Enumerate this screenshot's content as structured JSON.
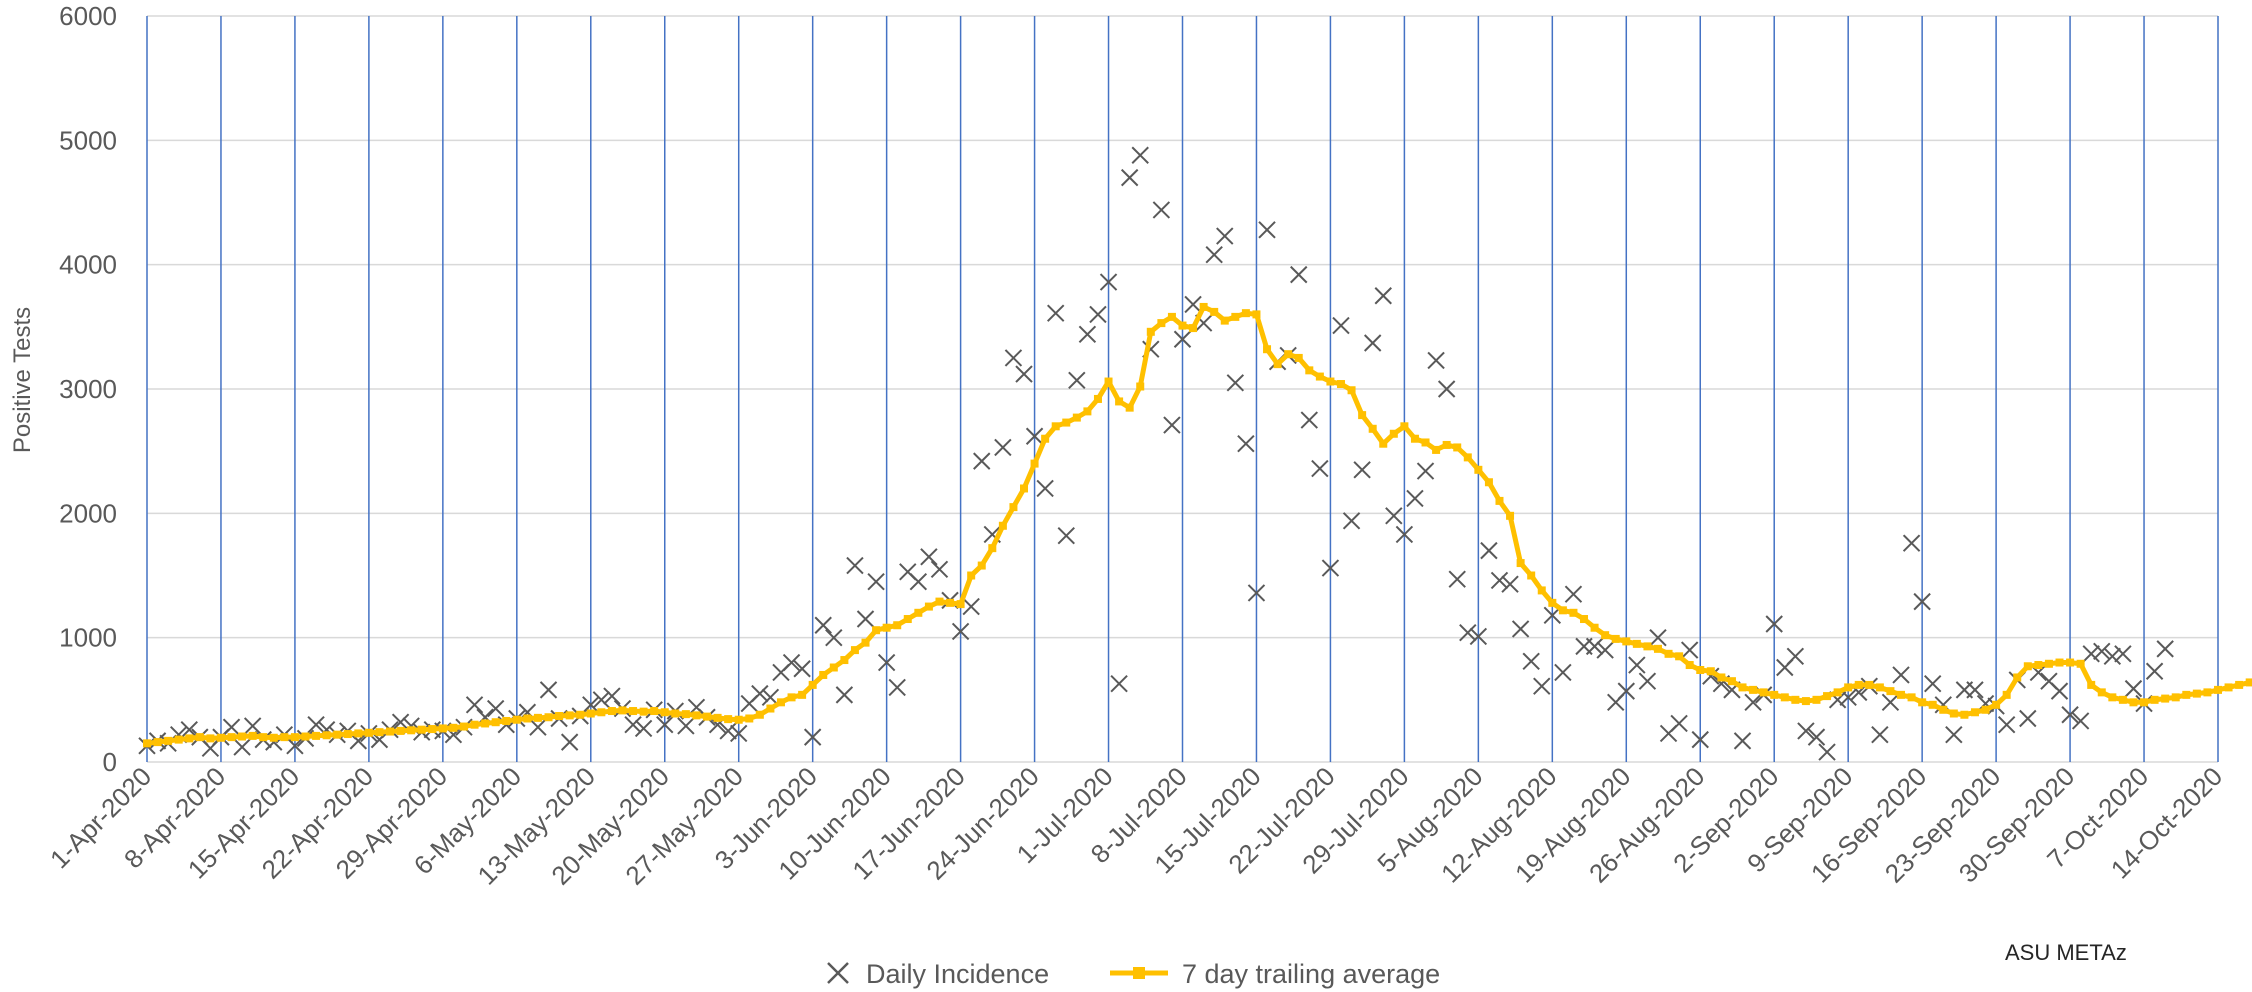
{
  "chart_data": {
    "type": "line",
    "title": "",
    "xlabel": "",
    "ylabel": "Positive Tests",
    "ylim": [
      0,
      6000
    ],
    "y_ticks": [
      0,
      1000,
      2000,
      3000,
      4000,
      5000,
      6000
    ],
    "x_start": "1-Apr-2020",
    "x_end": "14-Oct-2020",
    "x_tick_labels": [
      "1-Apr-2020",
      "8-Apr-2020",
      "15-Apr-2020",
      "22-Apr-2020",
      "29-Apr-2020",
      "6-May-2020",
      "13-May-2020",
      "20-May-2020",
      "27-May-2020",
      "3-Jun-2020",
      "10-Jun-2020",
      "17-Jun-2020",
      "24-Jun-2020",
      "1-Jul-2020",
      "8-Jul-2020",
      "15-Jul-2020",
      "22-Jul-2020",
      "29-Jul-2020",
      "5-Aug-2020",
      "12-Aug-2020",
      "19-Aug-2020",
      "26-Aug-2020",
      "2-Sep-2020",
      "9-Sep-2020",
      "16-Sep-2020",
      "23-Sep-2020",
      "30-Sep-2020",
      "7-Oct-2020",
      "14-Oct-2020"
    ],
    "grid": {
      "horizontal": true,
      "vertical_weekly": true
    },
    "legend_position": "bottom",
    "credit": "ASU METAz",
    "colors": {
      "daily": "#595959",
      "average": "#ffc000",
      "vgrid": "#4472c4",
      "hgrid": "#d9d9d9"
    },
    "series": [
      {
        "name": "Daily Incidence",
        "marker": "x",
        "values": [
          130,
          170,
          150,
          220,
          260,
          200,
          110,
          200,
          280,
          120,
          290,
          180,
          160,
          220,
          130,
          190,
          300,
          260,
          220,
          250,
          170,
          230,
          180,
          260,
          320,
          290,
          240,
          260,
          250,
          220,
          280,
          460,
          360,
          430,
          300,
          350,
          400,
          280,
          580,
          350,
          160,
          370,
          460,
          500,
          530,
          430,
          300,
          270,
          420,
          300,
          410,
          290,
          440,
          360,
          300,
          250,
          230,
          470,
          550,
          520,
          720,
          800,
          750,
          200,
          1100,
          1000,
          540,
          1580,
          1150,
          1450,
          800,
          600,
          1530,
          1450,
          1650,
          1550,
          1300,
          1050,
          1250,
          2420,
          1830,
          2530,
          3250,
          3120,
          2620,
          2200,
          3610,
          1820,
          3070,
          3440,
          3600,
          3860,
          630,
          4700,
          4880,
          3320,
          4440,
          2710,
          3400,
          3680,
          3530,
          4080,
          4230,
          3050,
          2560,
          1360,
          4280,
          3220,
          3270,
          3920,
          2750,
          2360,
          1560,
          3510,
          1940,
          2350,
          3370,
          3750,
          1980,
          1830,
          2120,
          2340,
          3230,
          3000,
          1470,
          1040,
          1010,
          1700,
          1460,
          1430,
          1070,
          810,
          610,
          1180,
          720,
          1350,
          930,
          930,
          900,
          480,
          570,
          780,
          650,
          1000,
          230,
          310,
          900,
          180,
          690,
          630,
          580,
          170,
          480,
          540,
          1110,
          760,
          850,
          250,
          200,
          80,
          500,
          520,
          560,
          610,
          220,
          480,
          700,
          1760,
          1290,
          630,
          460,
          220,
          580,
          580,
          470,
          450,
          300,
          660,
          350,
          720,
          650,
          570,
          380,
          330,
          870,
          890,
          850,
          870,
          590,
          470,
          730,
          910
        ]
      },
      {
        "name": "7 day trailing average",
        "marker": "square",
        "values": [
          150,
          160,
          170,
          180,
          190,
          200,
          190,
          195,
          200,
          205,
          210,
          200,
          195,
          200,
          200,
          205,
          210,
          215,
          220,
          225,
          230,
          235,
          240,
          245,
          250,
          255,
          260,
          265,
          270,
          275,
          285,
          300,
          310,
          320,
          330,
          340,
          350,
          355,
          360,
          370,
          375,
          380,
          390,
          400,
          410,
          415,
          410,
          405,
          410,
          400,
          390,
          385,
          375,
          365,
          355,
          345,
          340,
          350,
          380,
          430,
          480,
          520,
          540,
          620,
          700,
          760,
          820,
          900,
          960,
          1060,
          1080,
          1100,
          1150,
          1200,
          1250,
          1290,
          1280,
          1270,
          1500,
          1580,
          1720,
          1900,
          2050,
          2200,
          2400,
          2600,
          2700,
          2730,
          2770,
          2820,
          2920,
          3060,
          2900,
          2850,
          3020,
          3460,
          3530,
          3580,
          3510,
          3490,
          3660,
          3620,
          3550,
          3580,
          3610,
          3600,
          3320,
          3200,
          3280,
          3250,
          3150,
          3100,
          3060,
          3040,
          2990,
          2790,
          2680,
          2560,
          2640,
          2700,
          2600,
          2570,
          2510,
          2550,
          2530,
          2450,
          2350,
          2250,
          2100,
          1980,
          1600,
          1500,
          1380,
          1280,
          1220,
          1200,
          1150,
          1080,
          1020,
          990,
          970,
          950,
          930,
          910,
          870,
          850,
          780,
          740,
          730,
          680,
          650,
          600,
          580,
          560,
          540,
          520,
          500,
          490,
          500,
          530,
          560,
          600,
          620,
          620,
          600,
          570,
          540,
          520,
          480,
          460,
          420,
          390,
          380,
          400,
          420,
          460,
          540,
          680,
          770,
          780,
          790,
          800,
          800,
          790,
          620,
          560,
          520,
          500,
          480,
          480,
          500,
          510,
          520,
          540,
          550,
          560,
          580,
          600,
          620,
          640,
          660,
          680,
          700,
          720,
          740
        ]
      }
    ]
  }
}
